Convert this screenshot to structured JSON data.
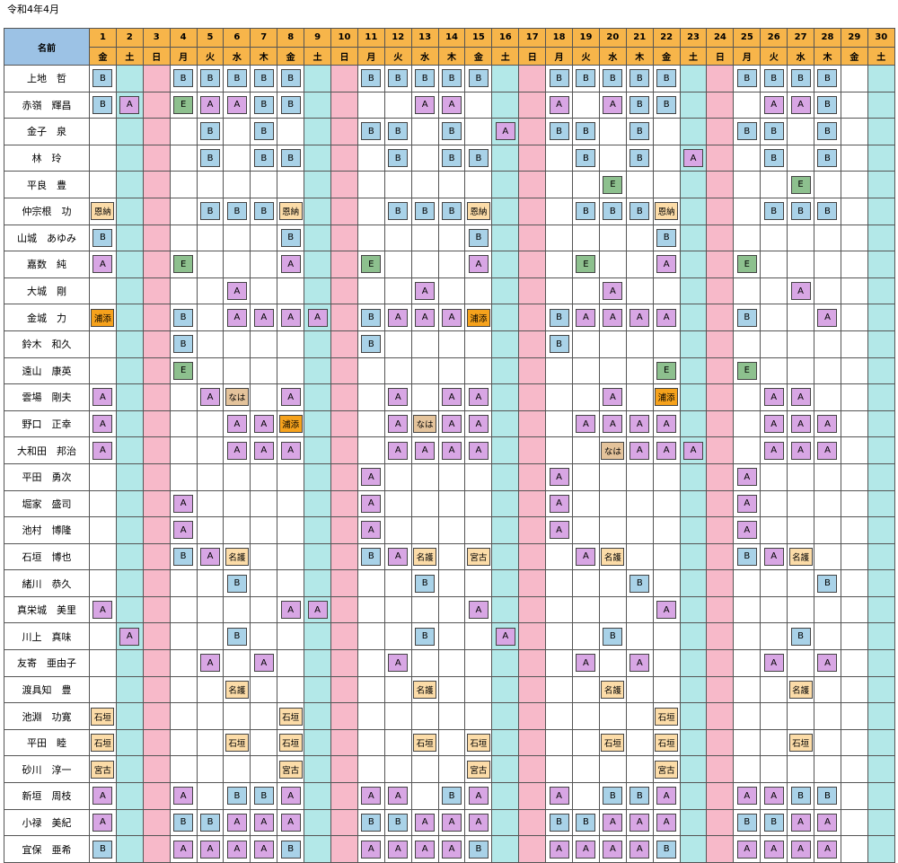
{
  "page": {
    "title": "令和4年4月"
  },
  "header": {
    "name_label": "名前",
    "dates": [
      "1",
      "2",
      "3",
      "4",
      "5",
      "6",
      "7",
      "8",
      "9",
      "10",
      "11",
      "12",
      "13",
      "14",
      "15",
      "16",
      "17",
      "18",
      "19",
      "20",
      "21",
      "22",
      "23",
      "24",
      "25",
      "26",
      "27",
      "28",
      "29",
      "30"
    ],
    "weekdays": [
      "金",
      "土",
      "日",
      "月",
      "火",
      "水",
      "木",
      "金",
      "土",
      "日",
      "月",
      "火",
      "水",
      "木",
      "金",
      "土",
      "日",
      "月",
      "火",
      "水",
      "木",
      "金",
      "土",
      "日",
      "月",
      "火",
      "水",
      "木",
      "金",
      "土"
    ]
  },
  "code_styles": {
    "A": "#d8a6e4",
    "B": "#a9d2e8",
    "E": "#8dc08e",
    "浦添": "#f6a21c",
    "なは": "#e4c39b",
    "石垣": "#fcdca8",
    "宮古": "#fcdca8",
    "名護": "#fcdca8",
    "恩納": "#fcdca8"
  },
  "column_colors": {
    "weekday": "#ffffff",
    "saturday": "#b3e8e8",
    "sunday": "#f7b9c9",
    "header": "#f7b54a",
    "name_header": "#9cc2e5"
  },
  "rows": [
    {
      "name": "上地　哲",
      "cells": [
        "B",
        "",
        "",
        "B",
        "B",
        "B",
        "B",
        "B",
        "",
        "",
        "B",
        "B",
        "B",
        "B",
        "B",
        "",
        "",
        "B",
        "B",
        "B",
        "B",
        "B",
        "",
        "",
        "B",
        "B",
        "B",
        "B",
        "",
        ""
      ]
    },
    {
      "name": "赤嶺　輝昌",
      "cells": [
        "B",
        "A",
        "",
        "E",
        "A",
        "A",
        "B",
        "B",
        "",
        "",
        "",
        "",
        "A",
        "A",
        "",
        "",
        "",
        "A",
        "",
        "A",
        "B",
        "B",
        "",
        "",
        "",
        "A",
        "A",
        "B",
        "",
        ""
      ]
    },
    {
      "name": "金子　泉",
      "cells": [
        "",
        "",
        "",
        "",
        "B",
        "",
        "B",
        "",
        "",
        "",
        "B",
        "B",
        "",
        "B",
        "",
        "A",
        "",
        "B",
        "B",
        "",
        "B",
        "",
        "",
        "",
        "B",
        "B",
        "",
        "B",
        "",
        ""
      ]
    },
    {
      "name": "林　玲",
      "cells": [
        "",
        "",
        "",
        "",
        "B",
        "",
        "B",
        "B",
        "",
        "",
        "",
        "B",
        "",
        "B",
        "B",
        "",
        "",
        "",
        "B",
        "",
        "B",
        "",
        "A",
        "",
        "",
        "B",
        "",
        "B",
        "",
        ""
      ]
    },
    {
      "name": "平良　豊",
      "cells": [
        "",
        "",
        "",
        "",
        "",
        "",
        "",
        "",
        "",
        "",
        "",
        "",
        "",
        "",
        "",
        "",
        "",
        "",
        "",
        "E",
        "",
        "",
        "",
        "",
        "",
        "",
        "E",
        "",
        "",
        ""
      ]
    },
    {
      "name": "仲宗根　功",
      "cells": [
        "恩納",
        "",
        "",
        "",
        "B",
        "B",
        "B",
        "恩納",
        "",
        "",
        "",
        "B",
        "B",
        "B",
        "恩納",
        "",
        "",
        "",
        "B",
        "B",
        "B",
        "恩納",
        "",
        "",
        "",
        "B",
        "B",
        "B",
        "",
        ""
      ]
    },
    {
      "name": "山城　あゆみ",
      "cells": [
        "B",
        "",
        "",
        "",
        "",
        "",
        "",
        "B",
        "",
        "",
        "",
        "",
        "",
        "",
        "B",
        "",
        "",
        "",
        "",
        "",
        "",
        "B",
        "",
        "",
        "",
        "",
        "",
        "",
        "",
        ""
      ]
    },
    {
      "name": "嘉数　純",
      "cells": [
        "A",
        "",
        "",
        "E",
        "",
        "",
        "",
        "A",
        "",
        "",
        "E",
        "",
        "",
        "",
        "A",
        "",
        "",
        "",
        "E",
        "",
        "",
        "A",
        "",
        "",
        "E",
        "",
        "",
        "",
        "",
        ""
      ]
    },
    {
      "name": "大城　剛",
      "cells": [
        "",
        "",
        "",
        "",
        "",
        "A",
        "",
        "",
        "",
        "",
        "",
        "",
        "A",
        "",
        "",
        "",
        "",
        "",
        "",
        "A",
        "",
        "",
        "",
        "",
        "",
        "",
        "A",
        "",
        "",
        ""
      ]
    },
    {
      "name": "金城　力",
      "cells": [
        "浦添",
        "",
        "",
        "B",
        "",
        "A",
        "A",
        "A",
        "A",
        "",
        "B",
        "A",
        "A",
        "A",
        "浦添",
        "",
        "",
        "B",
        "A",
        "A",
        "A",
        "A",
        "",
        "",
        "B",
        "",
        "",
        "A",
        "",
        ""
      ]
    },
    {
      "name": "鈴木　和久",
      "cells": [
        "",
        "",
        "",
        "B",
        "",
        "",
        "",
        "",
        "",
        "",
        "B",
        "",
        "",
        "",
        "",
        "",
        "",
        "B",
        "",
        "",
        "",
        "",
        "",
        "",
        "",
        "",
        "",
        "",
        "",
        ""
      ]
    },
    {
      "name": "遠山　康英",
      "cells": [
        "",
        "",
        "",
        "E",
        "",
        "",
        "",
        "",
        "",
        "",
        "",
        "",
        "",
        "",
        "",
        "",
        "",
        "",
        "",
        "",
        "",
        "E",
        "",
        "",
        "E",
        "",
        "",
        "",
        "",
        ""
      ]
    },
    {
      "name": "雲場　剛夫",
      "cells": [
        "A",
        "",
        "",
        "",
        "A",
        "なは",
        "",
        "A",
        "",
        "",
        "",
        "A",
        "",
        "A",
        "A",
        "",
        "",
        "",
        "",
        "A",
        "",
        "浦添",
        "",
        "",
        "",
        "A",
        "A",
        "",
        "",
        ""
      ]
    },
    {
      "name": "野口　正幸",
      "cells": [
        "A",
        "",
        "",
        "",
        "",
        "A",
        "A",
        "浦添",
        "",
        "",
        "",
        "A",
        "なは",
        "A",
        "A",
        "",
        "",
        "",
        "A",
        "A",
        "A",
        "A",
        "",
        "",
        "",
        "A",
        "A",
        "A",
        "",
        ""
      ]
    },
    {
      "name": "大和田　邦治",
      "cells": [
        "A",
        "",
        "",
        "",
        "",
        "A",
        "A",
        "A",
        "",
        "",
        "",
        "A",
        "A",
        "A",
        "A",
        "",
        "",
        "",
        "",
        "なは",
        "A",
        "A",
        "A",
        "",
        "",
        "A",
        "A",
        "A",
        "",
        ""
      ]
    },
    {
      "name": "平田　勇次",
      "cells": [
        "",
        "",
        "",
        "",
        "",
        "",
        "",
        "",
        "",
        "",
        "A",
        "",
        "",
        "",
        "",
        "",
        "",
        "A",
        "",
        "",
        "",
        "",
        "",
        "",
        "A",
        "",
        "",
        "",
        "",
        ""
      ]
    },
    {
      "name": "堀家　盛司",
      "cells": [
        "",
        "",
        "",
        "A",
        "",
        "",
        "",
        "",
        "",
        "",
        "A",
        "",
        "",
        "",
        "",
        "",
        "",
        "A",
        "",
        "",
        "",
        "",
        "",
        "",
        "A",
        "",
        "",
        "",
        "",
        ""
      ]
    },
    {
      "name": "池村　博隆",
      "cells": [
        "",
        "",
        "",
        "A",
        "",
        "",
        "",
        "",
        "",
        "",
        "A",
        "",
        "",
        "",
        "",
        "",
        "",
        "A",
        "",
        "",
        "",
        "",
        "",
        "",
        "A",
        "",
        "",
        "",
        "",
        ""
      ]
    },
    {
      "name": "石垣　博也",
      "cells": [
        "",
        "",
        "",
        "B",
        "A",
        "名護",
        "",
        "",
        "",
        "",
        "B",
        "A",
        "名護",
        "",
        "宮古",
        "",
        "",
        "",
        "A",
        "名護",
        "",
        "",
        "",
        "",
        "B",
        "A",
        "名護",
        "",
        "",
        ""
      ]
    },
    {
      "name": "緒川　恭久",
      "cells": [
        "",
        "",
        "",
        "",
        "",
        "B",
        "",
        "",
        "",
        "",
        "",
        "",
        "B",
        "",
        "",
        "",
        "",
        "",
        "",
        "",
        "B",
        "",
        "",
        "",
        "",
        "",
        "",
        "B",
        "",
        ""
      ]
    },
    {
      "name": "真栄城　美里",
      "cells": [
        "A",
        "",
        "",
        "",
        "",
        "",
        "",
        "A",
        "A",
        "",
        "",
        "",
        "",
        "",
        "A",
        "",
        "",
        "",
        "",
        "",
        "",
        "A",
        "",
        "",
        "",
        "",
        "",
        "",
        "",
        ""
      ]
    },
    {
      "name": "川上　真味",
      "cells": [
        "",
        "A",
        "",
        "",
        "",
        "B",
        "",
        "",
        "",
        "",
        "",
        "",
        "B",
        "",
        "",
        "A",
        "",
        "",
        "",
        "B",
        "",
        "",
        "",
        "",
        "",
        "",
        "B",
        "",
        "",
        ""
      ]
    },
    {
      "name": "友寄　亜由子",
      "cells": [
        "",
        "",
        "",
        "",
        "A",
        "",
        "A",
        "",
        "",
        "",
        "",
        "A",
        "",
        "",
        "",
        "",
        "",
        "",
        "A",
        "",
        "A",
        "",
        "",
        "",
        "",
        "A",
        "",
        "A",
        "",
        ""
      ]
    },
    {
      "name": "渡具知　豊",
      "cells": [
        "",
        "",
        "",
        "",
        "",
        "名護",
        "",
        "",
        "",
        "",
        "",
        "",
        "名護",
        "",
        "",
        "",
        "",
        "",
        "",
        "名護",
        "",
        "",
        "",
        "",
        "",
        "",
        "名護",
        "",
        "",
        ""
      ]
    },
    {
      "name": "池淵　功寛",
      "cells": [
        "石垣",
        "",
        "",
        "",
        "",
        "",
        "",
        "石垣",
        "",
        "",
        "",
        "",
        "",
        "",
        "",
        "",
        "",
        "",
        "",
        "",
        "",
        "石垣",
        "",
        "",
        "",
        "",
        "",
        "",
        "",
        ""
      ]
    },
    {
      "name": "平田　睦",
      "cells": [
        "石垣",
        "",
        "",
        "",
        "",
        "石垣",
        "",
        "石垣",
        "",
        "",
        "",
        "",
        "石垣",
        "",
        "石垣",
        "",
        "",
        "",
        "",
        "石垣",
        "",
        "石垣",
        "",
        "",
        "",
        "",
        "石垣",
        "",
        "",
        ""
      ]
    },
    {
      "name": "砂川　淳一",
      "cells": [
        "宮古",
        "",
        "",
        "",
        "",
        "",
        "",
        "宮古",
        "",
        "",
        "",
        "",
        "",
        "",
        "宮古",
        "",
        "",
        "",
        "",
        "",
        "",
        "宮古",
        "",
        "",
        "",
        "",
        "",
        "",
        "",
        ""
      ]
    },
    {
      "name": "新垣　周枝",
      "cells": [
        "A",
        "",
        "",
        "A",
        "",
        "B",
        "B",
        "A",
        "",
        "",
        "A",
        "A",
        "",
        "B",
        "A",
        "",
        "",
        "A",
        "",
        "B",
        "B",
        "A",
        "",
        "",
        "A",
        "A",
        "B",
        "B",
        "",
        ""
      ]
    },
    {
      "name": "小禄　美紀",
      "cells": [
        "A",
        "",
        "",
        "B",
        "B",
        "A",
        "A",
        "A",
        "",
        "",
        "B",
        "B",
        "A",
        "A",
        "A",
        "",
        "",
        "B",
        "B",
        "A",
        "A",
        "A",
        "",
        "",
        "B",
        "B",
        "A",
        "A",
        "",
        ""
      ]
    },
    {
      "name": "宜保　亜希",
      "cells": [
        "B",
        "",
        "",
        "A",
        "A",
        "A",
        "A",
        "B",
        "",
        "",
        "A",
        "A",
        "A",
        "A",
        "B",
        "",
        "",
        "A",
        "A",
        "A",
        "A",
        "B",
        "",
        "",
        "A",
        "A",
        "A",
        "A",
        "",
        ""
      ]
    }
  ]
}
